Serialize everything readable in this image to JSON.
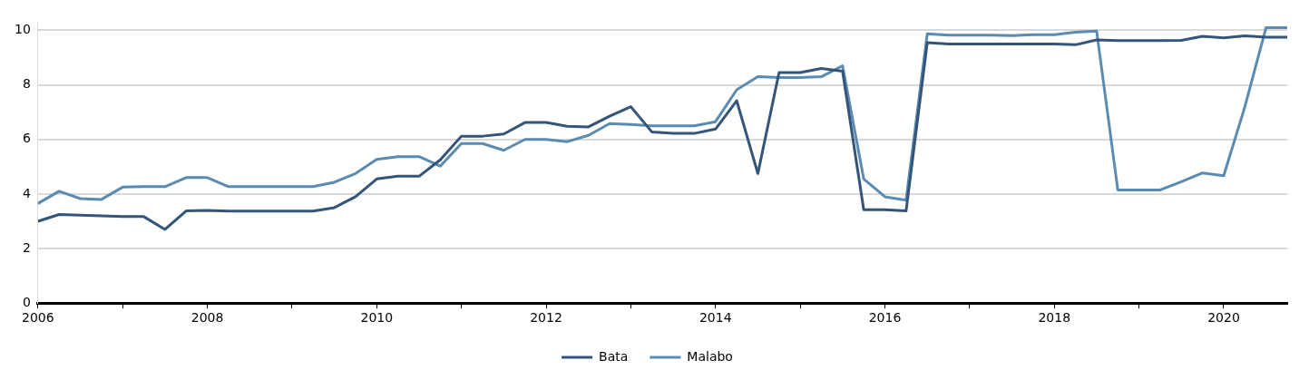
{
  "chart_data": {
    "type": "line",
    "x": [
      2006,
      2006.25,
      2006.5,
      2006.75,
      2007,
      2007.25,
      2007.5,
      2007.75,
      2008,
      2008.25,
      2008.5,
      2008.75,
      2009,
      2009.25,
      2009.5,
      2009.75,
      2010,
      2010.25,
      2010.5,
      2010.75,
      2011,
      2011.25,
      2011.5,
      2011.75,
      2012,
      2012.25,
      2012.5,
      2012.75,
      2013,
      2013.25,
      2013.5,
      2013.75,
      2014,
      2014.25,
      2014.5,
      2014.75,
      2015,
      2015.25,
      2015.5,
      2015.75,
      2016,
      2016.25,
      2016.5,
      2016.75,
      2017,
      2017.25,
      2017.5,
      2017.75,
      2018,
      2018.25,
      2018.5,
      2018.75,
      2019,
      2019.25,
      2019.5,
      2019.75,
      2020,
      2020.25,
      2020.5,
      2020.75
    ],
    "series": [
      {
        "name": "Bata",
        "color": "#34557a",
        "values": [
          3.0,
          3.25,
          3.22,
          3.2,
          3.17,
          3.17,
          2.7,
          3.38,
          3.4,
          3.37,
          3.37,
          3.37,
          3.37,
          3.37,
          3.5,
          3.9,
          4.55,
          4.65,
          4.65,
          5.25,
          6.12,
          6.12,
          6.2,
          6.62,
          6.62,
          6.48,
          6.46,
          6.85,
          7.2,
          6.27,
          6.22,
          6.22,
          6.38,
          7.42,
          4.75,
          8.45,
          8.45,
          8.6,
          8.5,
          3.42,
          3.42,
          3.38,
          9.55,
          9.5,
          9.5,
          9.5,
          9.5,
          9.5,
          9.5,
          9.47,
          9.65,
          9.62,
          9.62,
          9.62,
          9.63,
          9.78,
          9.72,
          9.8,
          9.75,
          9.75
        ]
      },
      {
        "name": "Malabo",
        "color": "#5b8bb0",
        "values": [
          3.65,
          4.1,
          3.83,
          3.8,
          4.25,
          4.27,
          4.27,
          4.6,
          4.6,
          4.27,
          4.27,
          4.27,
          4.27,
          4.27,
          4.43,
          4.75,
          5.27,
          5.37,
          5.37,
          5.02,
          5.85,
          5.85,
          5.6,
          6.0,
          6.0,
          5.92,
          6.15,
          6.58,
          6.55,
          6.5,
          6.5,
          6.5,
          6.65,
          7.82,
          8.3,
          8.27,
          8.27,
          8.3,
          8.7,
          4.55,
          3.9,
          3.77,
          9.87,
          9.82,
          9.82,
          9.82,
          9.81,
          9.84,
          9.84,
          9.93,
          9.97,
          4.15,
          4.15,
          4.15,
          4.45,
          4.77,
          4.67,
          7.2,
          10.1,
          10.1
        ]
      }
    ],
    "xlim": [
      2006,
      2020.75
    ],
    "xticks": [
      2006,
      {
        "value": 2007,
        "label": null
      },
      2008,
      {
        "value": 2009,
        "label": null
      },
      2010,
      {
        "value": 2011,
        "label": null
      },
      2012,
      {
        "value": 2013,
        "label": null
      },
      2014,
      {
        "value": 2015,
        "label": null
      },
      2016,
      {
        "value": 2017,
        "label": null
      },
      2018,
      {
        "value": 2019,
        "label": null
      },
      2020
    ],
    "ylim": [
      0,
      10.3
    ],
    "yticks": [
      0,
      2,
      4,
      6,
      8,
      10
    ],
    "grid": "y",
    "legend": "bottom",
    "marker": "none",
    "line_style": "solid"
  }
}
